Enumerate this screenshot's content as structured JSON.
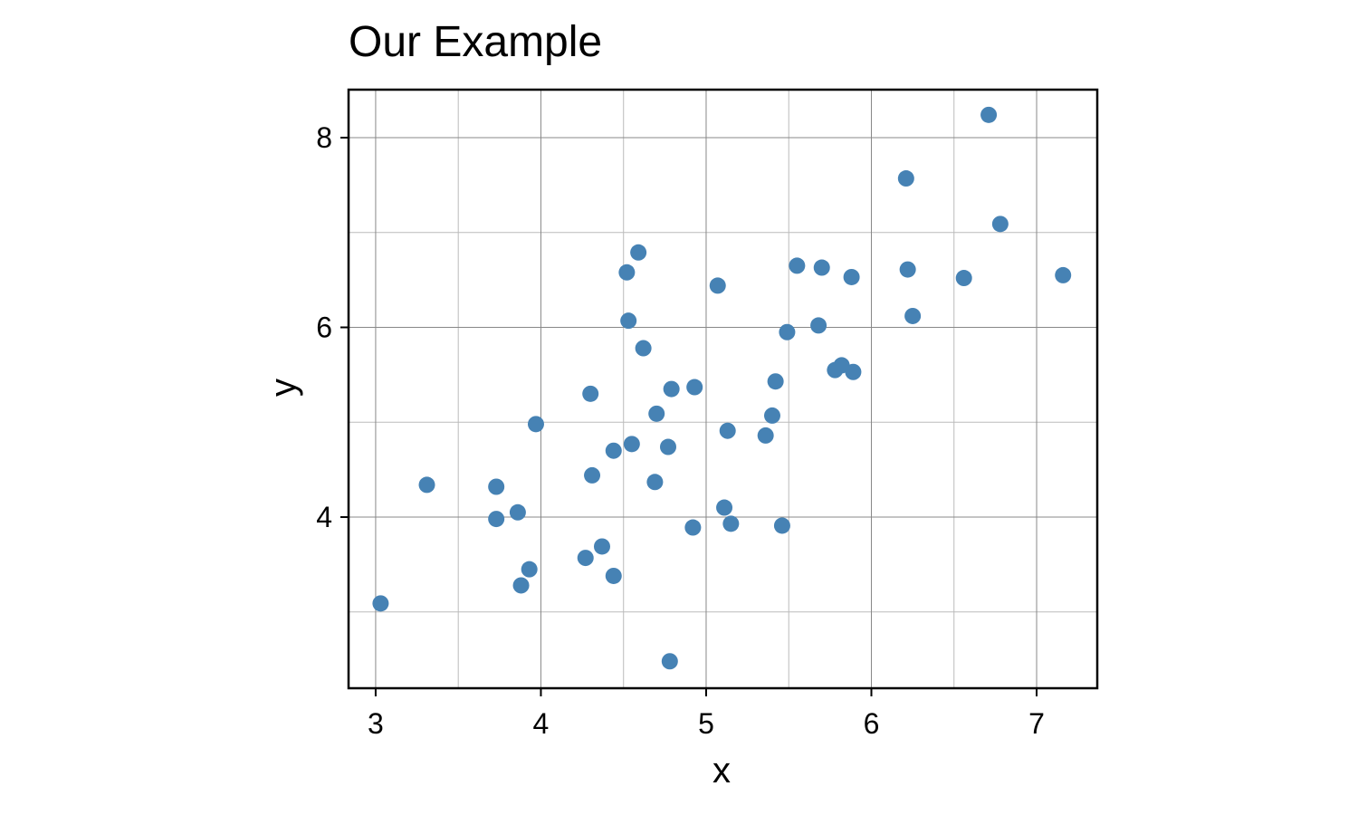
{
  "chart_data": {
    "type": "scatter",
    "title": "Our Example",
    "x_label": "x",
    "y_label": "y",
    "color": "#4682b4",
    "grid": true,
    "xlim": [
      2.836,
      7.367
    ],
    "ylim": [
      2.196,
      8.506
    ],
    "xticks": [
      3,
      4,
      5,
      6,
      7
    ],
    "yticks": [
      4,
      6,
      8
    ],
    "x_minor_grid": [
      3.5,
      4.5,
      5.5,
      6.5
    ],
    "y_minor_grid": [
      3,
      5,
      7
    ],
    "x": [
      3.03,
      3.31,
      3.73,
      3.73,
      3.86,
      3.97,
      3.93,
      3.88,
      4.27,
      4.37,
      4.44,
      4.3,
      4.31,
      4.44,
      4.55,
      4.52,
      4.59,
      4.53,
      4.62,
      4.7,
      4.69,
      4.77,
      4.79,
      4.78,
      4.93,
      4.92,
      5.07,
      5.13,
      5.11,
      5.15,
      5.36,
      5.4,
      5.42,
      5.46,
      5.49,
      5.55,
      5.68,
      5.7,
      5.78,
      5.82,
      5.89,
      5.88,
      6.21,
      6.22,
      6.25,
      6.56,
      6.71,
      6.78,
      7.16
    ],
    "y": [
      3.09,
      4.34,
      4.32,
      3.98,
      4.05,
      4.98,
      3.45,
      3.28,
      3.57,
      3.69,
      3.38,
      5.3,
      4.44,
      4.7,
      4.77,
      6.58,
      6.79,
      6.07,
      5.78,
      5.09,
      4.37,
      4.74,
      5.35,
      2.48,
      5.37,
      3.89,
      6.44,
      4.91,
      4.1,
      3.93,
      4.86,
      5.07,
      5.43,
      3.91,
      5.95,
      6.65,
      6.02,
      6.63,
      5.55,
      5.6,
      5.53,
      6.53,
      7.57,
      6.61,
      6.12,
      6.52,
      8.24,
      7.09,
      6.55
    ]
  }
}
